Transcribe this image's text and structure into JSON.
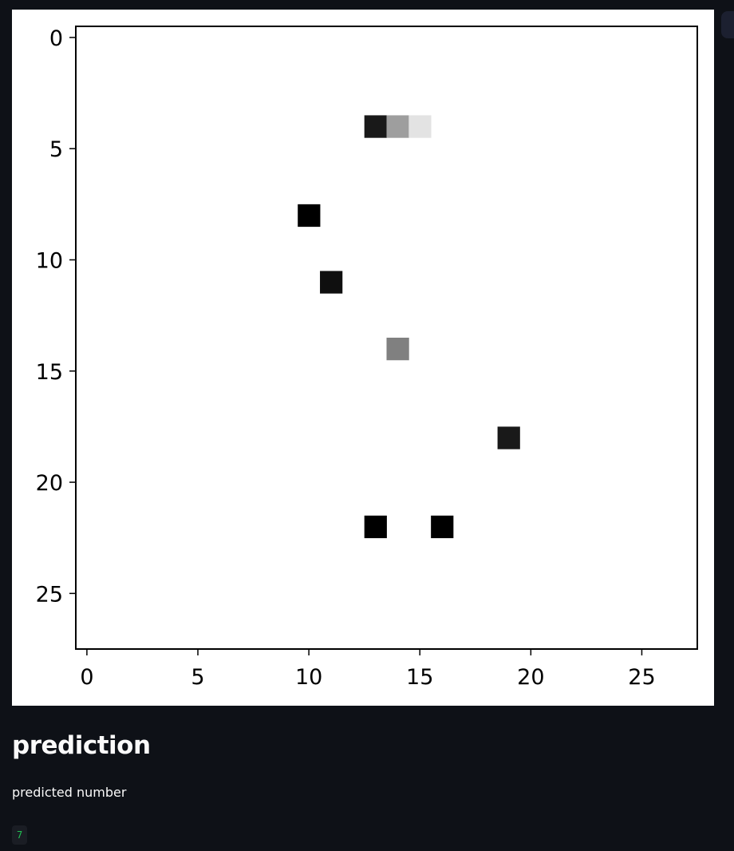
{
  "chart_data": {
    "type": "heatmap",
    "colormap": "gray_r",
    "grid": false,
    "xlim": [
      -0.5,
      27.5
    ],
    "ylim": [
      27.5,
      -0.5
    ],
    "xticks": [
      0,
      5,
      10,
      15,
      20,
      25
    ],
    "yticks": [
      0,
      5,
      10,
      15,
      20,
      25
    ],
    "xtick_labels": [
      "0",
      "5",
      "10",
      "15",
      "20",
      "25"
    ],
    "ytick_labels": [
      "0",
      "5",
      "10",
      "15",
      "20",
      "25"
    ],
    "pixels": [
      {
        "x": 13,
        "y": 4,
        "value": 0.9
      },
      {
        "x": 14,
        "y": 4,
        "value": 0.38
      },
      {
        "x": 15,
        "y": 4,
        "value": 0.11
      },
      {
        "x": 10,
        "y": 8,
        "value": 1.0
      },
      {
        "x": 11,
        "y": 11,
        "value": 0.94
      },
      {
        "x": 14,
        "y": 14,
        "value": 0.5
      },
      {
        "x": 19,
        "y": 18,
        "value": 0.9
      },
      {
        "x": 13,
        "y": 22,
        "value": 1.0
      },
      {
        "x": 16,
        "y": 22,
        "value": 1.0
      }
    ]
  },
  "section": {
    "heading": "prediction",
    "caption": "predicted number",
    "value": "7"
  }
}
